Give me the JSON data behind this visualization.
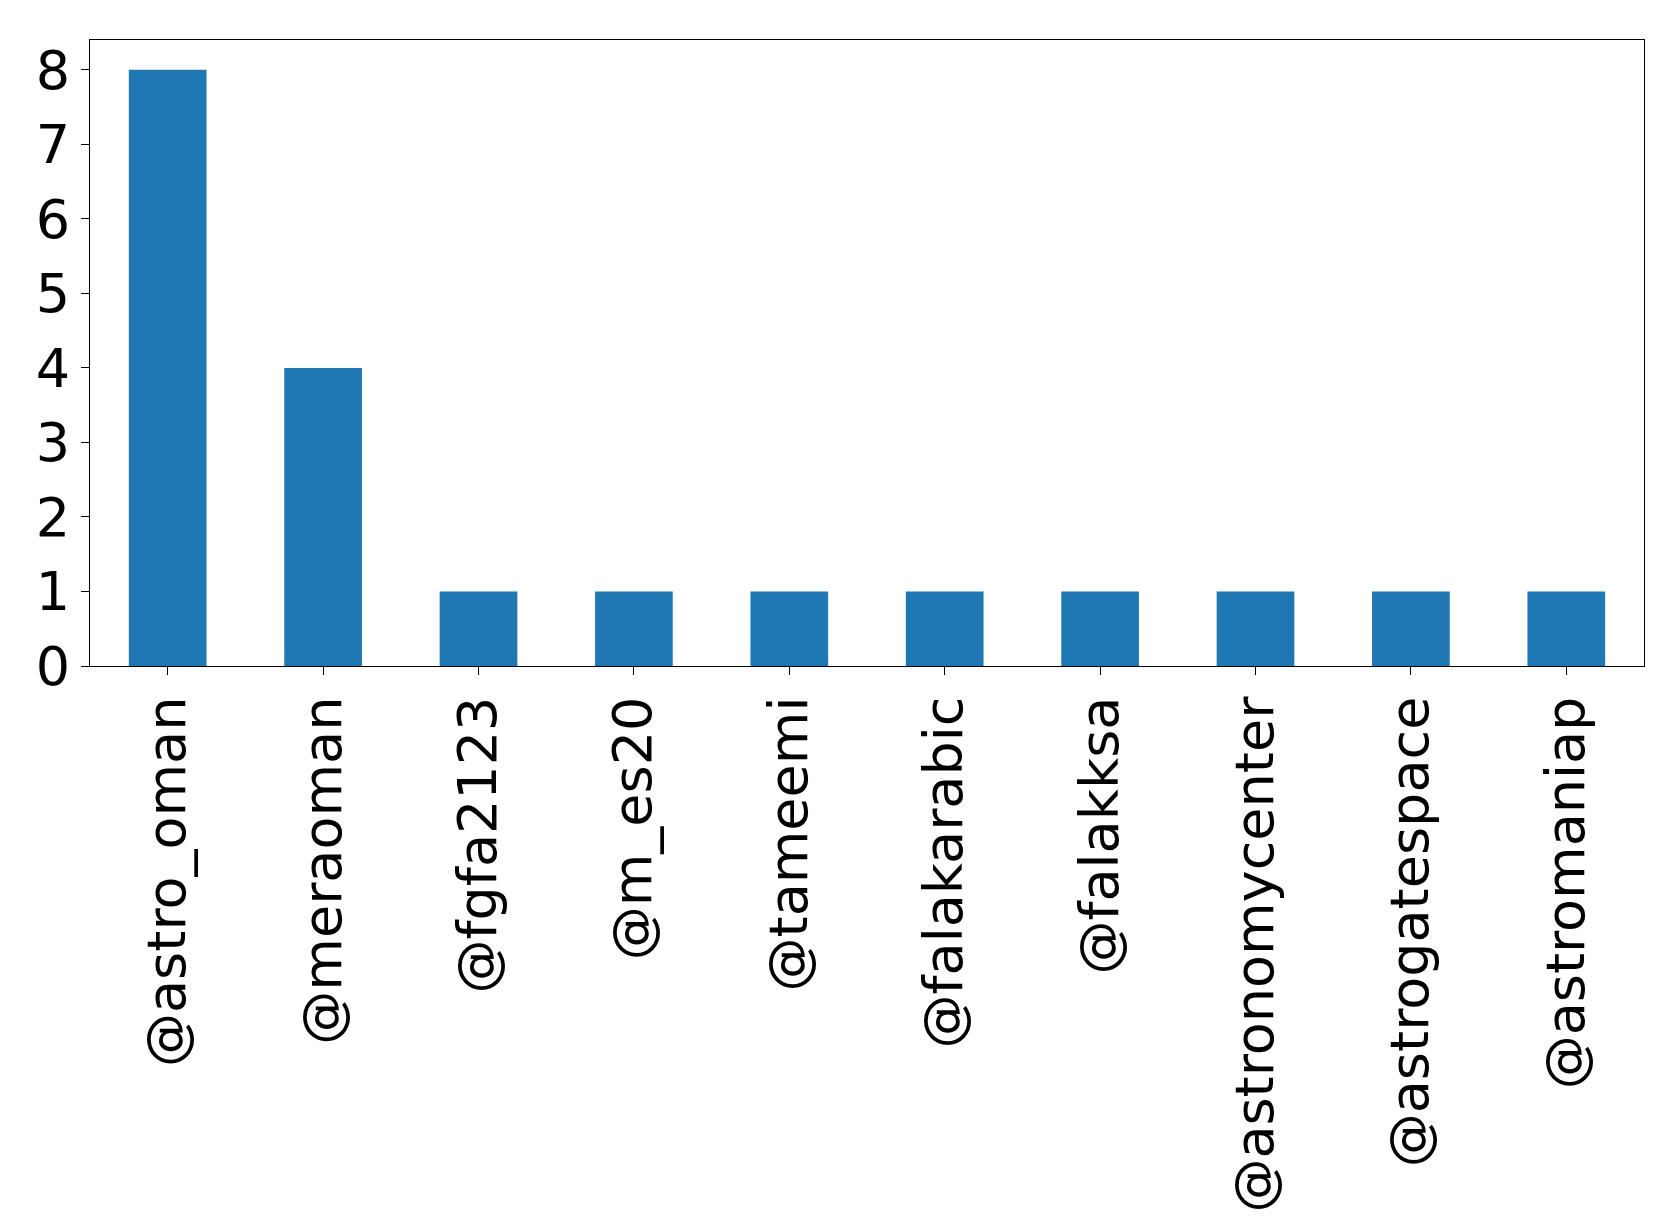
{
  "chart_data": {
    "type": "bar",
    "categories": [
      "@astro_oman",
      "@meraoman",
      "@fgfa2123",
      "@m_es20",
      "@tameemi",
      "@falakarabic",
      "@falakksa",
      "@astronomycenter",
      "@astrogatespace",
      "@astromaniap"
    ],
    "values": [
      8,
      4,
      1,
      1,
      1,
      1,
      1,
      1,
      1,
      1
    ],
    "color": "#1f77b4",
    "ylim": [
      0,
      8.4
    ],
    "yticks": [
      0,
      1,
      2,
      3,
      4,
      5,
      6,
      7,
      8
    ],
    "legend": false
  }
}
